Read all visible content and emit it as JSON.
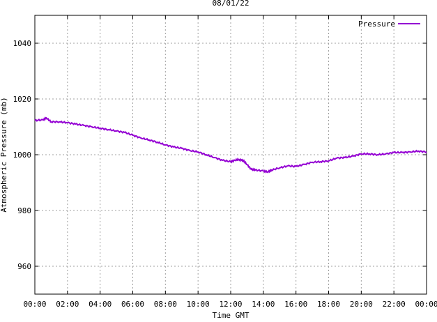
{
  "chart_data": {
    "type": "line",
    "title": "08/01/22",
    "xlabel": "Time GMT",
    "ylabel": "Atmospheric Pressure (mb)",
    "xlim": [
      0,
      24
    ],
    "ylim": [
      950,
      1050
    ],
    "grid": true,
    "legend_position": "top-right",
    "x_ticks": [
      {
        "value": 0,
        "label": "00:00"
      },
      {
        "value": 2,
        "label": "02:00"
      },
      {
        "value": 4,
        "label": "04:00"
      },
      {
        "value": 6,
        "label": "06:00"
      },
      {
        "value": 8,
        "label": "08:00"
      },
      {
        "value": 10,
        "label": "10:00"
      },
      {
        "value": 12,
        "label": "12:00"
      },
      {
        "value": 14,
        "label": "14:00"
      },
      {
        "value": 16,
        "label": "16:00"
      },
      {
        "value": 18,
        "label": "18:00"
      },
      {
        "value": 20,
        "label": "20:00"
      },
      {
        "value": 22,
        "label": "22:00"
      },
      {
        "value": 24,
        "label": "00:00"
      }
    ],
    "y_ticks": [
      {
        "value": 960,
        "label": "960"
      },
      {
        "value": 980,
        "label": "980"
      },
      {
        "value": 1000,
        "label": "1000"
      },
      {
        "value": 1020,
        "label": "1020"
      },
      {
        "value": 1040,
        "label": "1040"
      }
    ],
    "series": [
      {
        "name": "Pressure",
        "color": "#9400d3",
        "x": [
          0,
          0.5,
          0.7,
          1,
          1.5,
          2,
          2.5,
          3,
          3.5,
          4,
          4.5,
          5,
          5.5,
          6,
          6.5,
          7,
          7.5,
          8,
          8.5,
          9,
          9.5,
          10,
          10.5,
          11,
          11.5,
          12,
          12.25,
          12.5,
          12.75,
          13,
          13.25,
          13.5,
          14,
          14.25,
          14.5,
          15,
          15.5,
          16,
          16.5,
          17,
          17.5,
          18,
          18.5,
          19,
          19.5,
          20,
          20.5,
          21,
          21.5,
          22,
          22.5,
          23,
          23.5,
          24
        ],
        "y": [
          1012.3,
          1012.5,
          1013.2,
          1011.8,
          1011.8,
          1011.5,
          1011,
          1010.5,
          1010,
          1009.5,
          1009,
          1008.5,
          1008,
          1007,
          1006,
          1005.3,
          1004.5,
          1003.5,
          1002.8,
          1002.3,
          1001.5,
          1001,
          1000,
          999,
          998,
          997.5,
          998,
          998.3,
          998,
          996.5,
          994.8,
          994.5,
          994.2,
          993.8,
          994.5,
          995.3,
          996,
          995.8,
          996.5,
          997.3,
          997.5,
          997.8,
          998.8,
          999,
          999.5,
          1000.3,
          1000.3,
          1000,
          1000.3,
          1000.8,
          1000.8,
          1001,
          1001.3,
          1001
        ]
      }
    ]
  }
}
